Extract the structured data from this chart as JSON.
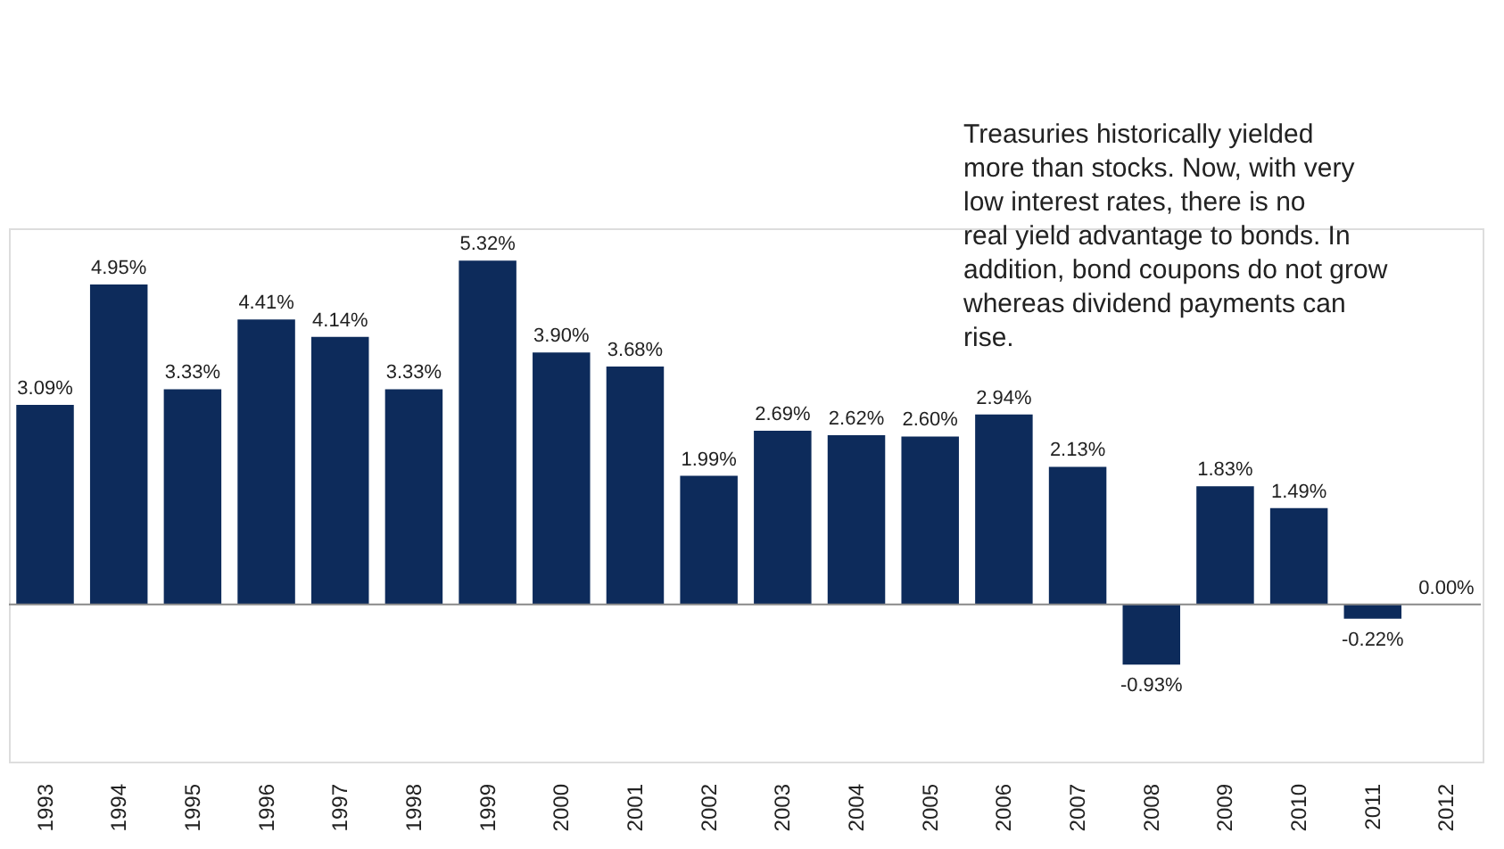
{
  "chart_data": {
    "type": "bar",
    "categories": [
      "1993",
      "1994",
      "1995",
      "1996",
      "1997",
      "1998",
      "1999",
      "2000",
      "2001",
      "2002",
      "2003",
      "2004",
      "2005",
      "2006",
      "2007",
      "2008",
      "2009",
      "2010",
      "2011",
      "2012"
    ],
    "values": [
      3.09,
      4.95,
      3.33,
      4.41,
      4.14,
      3.33,
      5.32,
      3.9,
      3.68,
      1.99,
      2.69,
      2.62,
      2.6,
      2.94,
      2.13,
      -0.93,
      1.83,
      1.49,
      -0.22,
      0.0
    ],
    "value_labels": [
      "3.09%",
      "4.95%",
      "3.33%",
      "4.41%",
      "4.14%",
      "3.33%",
      "5.32%",
      "3.90%",
      "3.68%",
      "1.99%",
      "2.69%",
      "2.62%",
      "2.60%",
      "2.94%",
      "2.13%",
      "-0.93%",
      "1.83%",
      "1.49%",
      "-0.22%",
      "0.00%"
    ],
    "color": "#0d2b5b",
    "annotations": [
      "Treasuries historically yielded more than stocks.  Now, with very low interest rates, there is no real yield advantage to bonds.  In addition, bond coupons do not grow whereas dividend payments can rise."
    ],
    "grid": false
  }
}
